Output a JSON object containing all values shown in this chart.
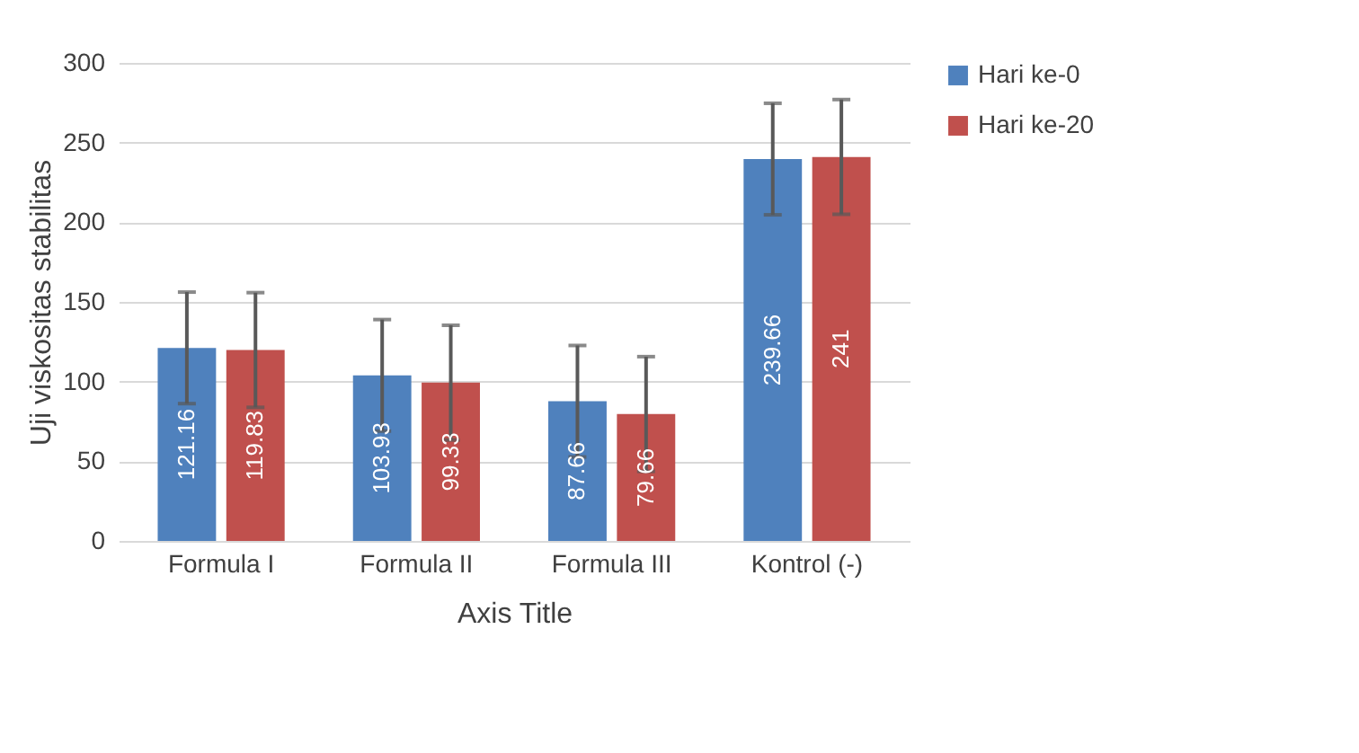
{
  "chart_data": {
    "type": "bar",
    "xlabel": "Axis Title",
    "ylabel": "Uji viskositas stabilitas",
    "categories": [
      "Formula I",
      "Formula II",
      "Formula III",
      "Kontrol (-)"
    ],
    "series": [
      {
        "name": "Hari ke-0",
        "color": "#4f81bd",
        "values": [
          121.16,
          103.93,
          87.66,
          239.66
        ],
        "errors": [
          35,
          35,
          35,
          35
        ]
      },
      {
        "name": "Hari ke-20",
        "color": "#c0504d",
        "values": [
          119.83,
          99.33,
          79.66,
          241
        ],
        "errors": [
          36,
          36,
          36,
          36
        ]
      }
    ],
    "ylim": [
      0,
      300
    ],
    "yticks": [
      0,
      50,
      100,
      150,
      200,
      250,
      300
    ],
    "grid": "y",
    "legend": "right",
    "data_labels": true
  }
}
